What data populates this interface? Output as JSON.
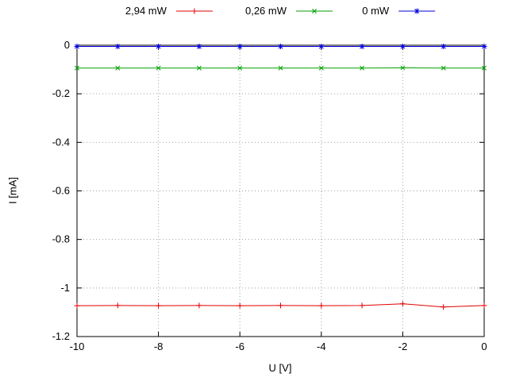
{
  "page": {
    "background": "#ffffff"
  },
  "colors": {
    "axis": "#000000",
    "grid": "#a0a0a0",
    "text": "#000000"
  },
  "chart_data": {
    "type": "line",
    "title": "",
    "xlabel": "U [V]",
    "ylabel": "I [mA]",
    "xlim": [
      -10,
      0
    ],
    "ylim": [
      -1.2,
      0
    ],
    "grid": true,
    "legend_position": "top-center",
    "xticks": {
      "values": [
        -10,
        -8,
        -6,
        -4,
        -2,
        0
      ],
      "labels": [
        "-10",
        "-8",
        "-6",
        "-4",
        "-2",
        "0"
      ]
    },
    "yticks": {
      "values": [
        0,
        -0.2,
        -0.4,
        -0.6,
        -0.8,
        -1,
        -1.2
      ],
      "labels": [
        "0",
        "-0.2",
        "-0.4",
        "-0.6",
        "-0.8",
        "-1",
        "-1.2"
      ]
    },
    "x": [
      -10,
      -9,
      -8,
      -7,
      -6,
      -5,
      -4,
      -3,
      -2,
      -1,
      0
    ],
    "series": [
      {
        "name": "2,94 mW",
        "color": "#e00000",
        "marker": "plus",
        "values": [
          -1.073,
          -1.072,
          -1.073,
          -1.072,
          -1.073,
          -1.072,
          -1.073,
          -1.072,
          -1.065,
          -1.078,
          -1.072
        ]
      },
      {
        "name": "0,26 mW",
        "color": "#00a000",
        "marker": "x",
        "values": [
          -0.094,
          -0.094,
          -0.094,
          -0.094,
          -0.094,
          -0.094,
          -0.094,
          -0.094,
          -0.093,
          -0.094,
          -0.094
        ]
      },
      {
        "name": "0 mW",
        "color": "#0000e0",
        "marker": "asterisk",
        "values": [
          -0.005,
          -0.005,
          -0.005,
          -0.005,
          -0.005,
          -0.005,
          -0.005,
          -0.005,
          -0.005,
          -0.005,
          -0.005
        ]
      }
    ]
  }
}
